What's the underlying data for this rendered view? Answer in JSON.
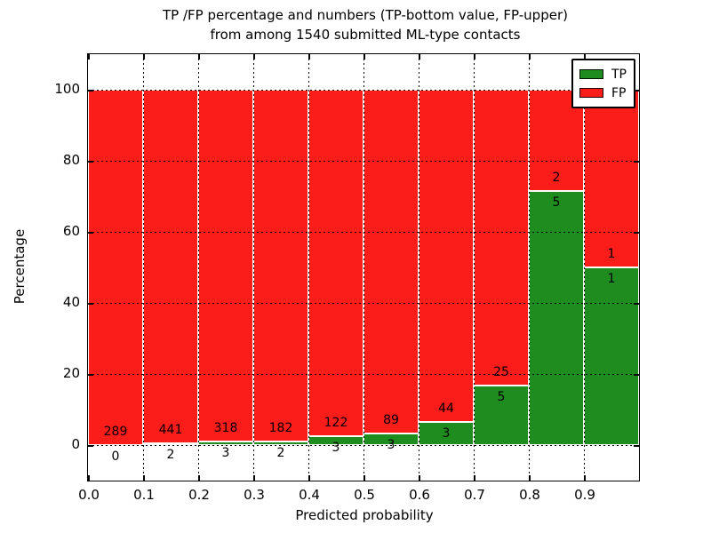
{
  "title": {
    "line1": "TP /FP percentage and numbers (TP-bottom value, FP-upper)",
    "line2": "from among 1540 submitted ML-type contacts"
  },
  "chart_data": {
    "type": "bar",
    "stacked": true,
    "title": "TP /FP percentage and numbers (TP-bottom value, FP-upper) from among 1540 submitted ML-type contacts",
    "xlabel": "Predicted probability",
    "ylabel": "Percentage",
    "xlim": [
      0.0,
      1.0
    ],
    "ylim": [
      -10,
      110
    ],
    "x_tick_labels": [
      "0.0",
      "0.1",
      "0.2",
      "0.3",
      "0.4",
      "0.5",
      "0.6",
      "0.7",
      "0.8",
      "0.9"
    ],
    "y_tick_values": [
      0,
      20,
      40,
      60,
      80,
      100
    ],
    "grid": "dotted",
    "legend_position": "upper right",
    "total_contacts": 1540,
    "series": [
      {
        "name": "TP",
        "color": "#1e8c1e",
        "counts": [
          0,
          2,
          3,
          2,
          3,
          3,
          3,
          5,
          5,
          1
        ]
      },
      {
        "name": "FP",
        "color": "#fb1d1a",
        "counts": [
          289,
          441,
          318,
          182,
          122,
          89,
          44,
          25,
          2,
          1
        ]
      }
    ],
    "bins": [
      {
        "x_start": 0.0,
        "x_end": 0.1,
        "tp": 0,
        "fp": 289,
        "tp_pct": 0.0,
        "fp_pct": 100.0
      },
      {
        "x_start": 0.1,
        "x_end": 0.2,
        "tp": 2,
        "fp": 441,
        "tp_pct": 0.45,
        "fp_pct": 99.55
      },
      {
        "x_start": 0.2,
        "x_end": 0.3,
        "tp": 3,
        "fp": 318,
        "tp_pct": 0.93,
        "fp_pct": 99.07
      },
      {
        "x_start": 0.3,
        "x_end": 0.4,
        "tp": 2,
        "fp": 182,
        "tp_pct": 1.09,
        "fp_pct": 98.91
      },
      {
        "x_start": 0.4,
        "x_end": 0.5,
        "tp": 3,
        "fp": 122,
        "tp_pct": 2.4,
        "fp_pct": 97.6
      },
      {
        "x_start": 0.5,
        "x_end": 0.6,
        "tp": 3,
        "fp": 89,
        "tp_pct": 3.26,
        "fp_pct": 96.74
      },
      {
        "x_start": 0.6,
        "x_end": 0.7,
        "tp": 3,
        "fp": 44,
        "tp_pct": 6.38,
        "fp_pct": 93.62
      },
      {
        "x_start": 0.7,
        "x_end": 0.8,
        "tp": 5,
        "fp": 25,
        "tp_pct": 16.67,
        "fp_pct": 83.33
      },
      {
        "x_start": 0.8,
        "x_end": 0.9,
        "tp": 5,
        "fp": 2,
        "tp_pct": 71.43,
        "fp_pct": 28.57
      },
      {
        "x_start": 0.9,
        "x_end": 1.0,
        "tp": 1,
        "fp": 1,
        "tp_pct": 50.0,
        "fp_pct": 50.0
      }
    ]
  }
}
